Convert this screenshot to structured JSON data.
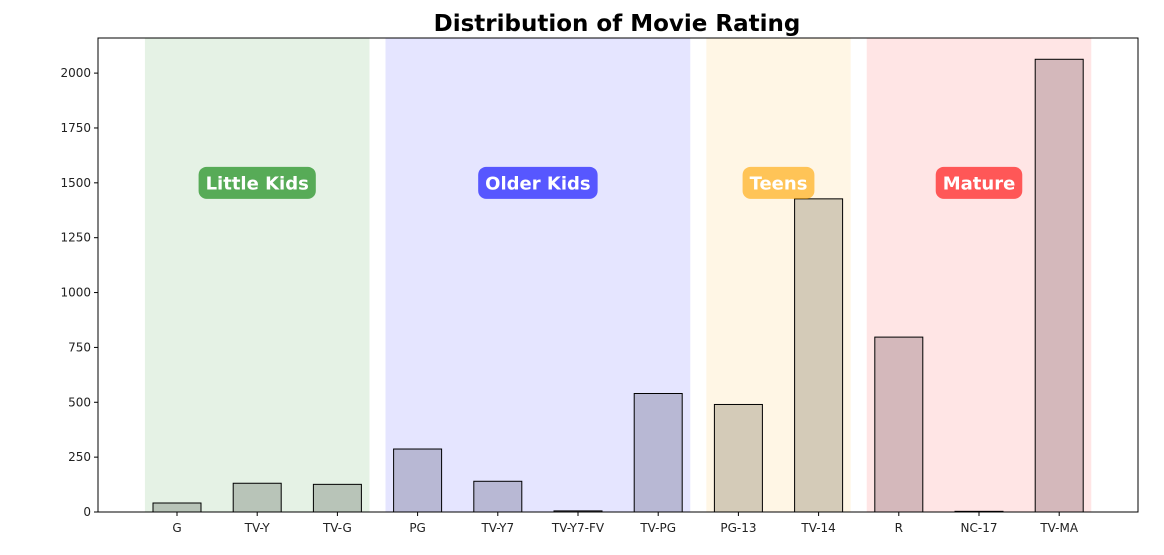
{
  "chart_data": {
    "type": "bar",
    "title": "Distribution of Movie Rating",
    "xlabel": "",
    "ylabel": "",
    "ylim": [
      0,
      2160
    ],
    "yticks": [
      0,
      250,
      500,
      750,
      1000,
      1250,
      1500,
      1750,
      2000
    ],
    "grid": false,
    "categories": [
      "G",
      "TV-Y",
      "TV-G",
      "PG",
      "TV-Y7",
      "TV-Y7-FV",
      "TV-PG",
      "PG-13",
      "TV-14",
      "R",
      "NC-17",
      "TV-MA"
    ],
    "values": [
      41,
      131,
      126,
      287,
      140,
      5,
      540,
      490,
      1427,
      797,
      3,
      2063
    ],
    "groups": [
      {
        "label": "Little Kids",
        "start": 0,
        "end": 2,
        "color": "#008000",
        "bar_color": "#b8c4b8",
        "label_y": 1500
      },
      {
        "label": "Older Kids",
        "start": 3,
        "end": 6,
        "color": "#0000ff",
        "bar_color": "#b8b8d4",
        "label_y": 1500
      },
      {
        "label": "Teens",
        "start": 7,
        "end": 8,
        "color": "#ffa500",
        "bar_color": "#d4cbb8",
        "label_y": 1500
      },
      {
        "label": "Mature",
        "start": 9,
        "end": 11,
        "color": "#ff0000",
        "bar_color": "#d4b8bb",
        "label_y": 1500
      }
    ]
  }
}
